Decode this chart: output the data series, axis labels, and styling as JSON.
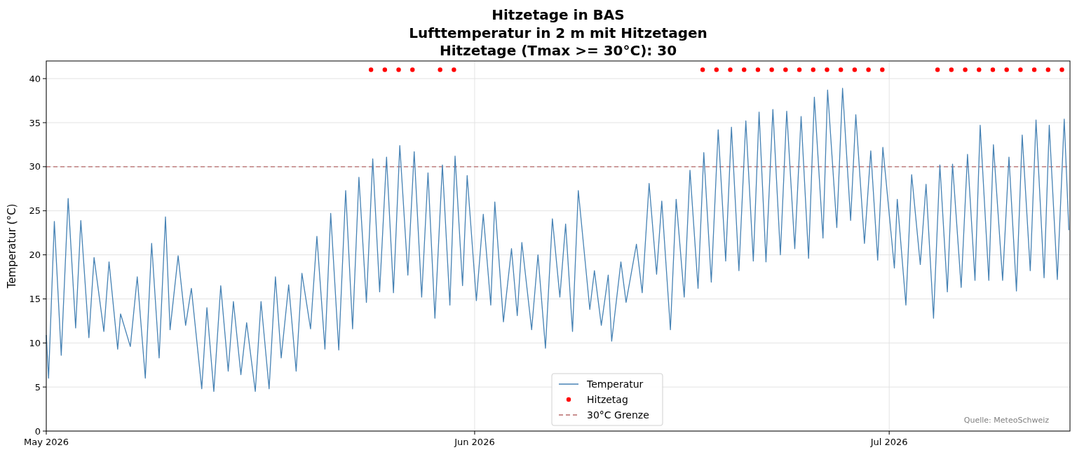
{
  "chart_data": {
    "type": "line",
    "title": "Hitzetage in BAS\nLufttemperatur in 2 m mit Hitzetagen\nHitzetage (Tmax >= 30°C): 30",
    "ylabel": "Temperatur (°C)",
    "xlim": [
      "2026-05-01T00:00",
      "2026-07-14T02:00"
    ],
    "xticks": [
      {
        "value": "2026-05-01",
        "label": "May 2026"
      },
      {
        "value": "2026-06-01",
        "label": "Jun 2026"
      },
      {
        "value": "2026-07-01",
        "label": "Jul 2026"
      }
    ],
    "ylim": [
      0,
      42
    ],
    "yticks": [
      0,
      5,
      10,
      15,
      20,
      25,
      30,
      35,
      40
    ],
    "grid": true,
    "legend": "bottom",
    "annotations": [
      "Quelle: MeteoSchweiz"
    ],
    "ref_lines": [
      {
        "axis": "y",
        "value": 30,
        "label": "30°C Grenze",
        "color": "#b86b6b",
        "line_style": "dashed"
      }
    ],
    "series": [
      {
        "name": "Temperatur",
        "color": "#4682b4",
        "marker": "none",
        "x": [
          "2026-05-01T00:00",
          "2026-05-01T04:00",
          "2026-05-01T14:00",
          "2026-05-02T02:00",
          "2026-05-02T14:00",
          "2026-05-03T03:00",
          "2026-05-03T12:00",
          "2026-05-04T02:00",
          "2026-05-04T11:00",
          "2026-05-05T04:00",
          "2026-05-05T13:00",
          "2026-05-06T04:00",
          "2026-05-06T09:00",
          "2026-05-07T02:00",
          "2026-05-07T14:00",
          "2026-05-08T04:00",
          "2026-05-08T15:00",
          "2026-05-09T04:00",
          "2026-05-09T15:00",
          "2026-05-09T23:00",
          "2026-05-10T13:00",
          "2026-05-11T02:00",
          "2026-05-11T12:00",
          "2026-05-12T06:00",
          "2026-05-12T15:00",
          "2026-05-13T03:00",
          "2026-05-13T15:00",
          "2026-05-14T04:00",
          "2026-05-14T13:00",
          "2026-05-15T02:00",
          "2026-05-15T12:00",
          "2026-05-16T03:00",
          "2026-05-16T13:00",
          "2026-05-17T03:00",
          "2026-05-17T14:00",
          "2026-05-18T00:00",
          "2026-05-18T13:00",
          "2026-05-19T02:00",
          "2026-05-19T12:00",
          "2026-05-20T03:00",
          "2026-05-20T14:00",
          "2026-05-21T04:00",
          "2026-05-21T14:00",
          "2026-05-22T04:00",
          "2026-05-22T16:00",
          "2026-05-23T04:00",
          "2026-05-23T15:00",
          "2026-05-24T04:00",
          "2026-05-24T15:00",
          "2026-05-25T03:00",
          "2026-05-25T15:00",
          "2026-05-26T03:00",
          "2026-05-26T14:00",
          "2026-05-27T04:00",
          "2026-05-27T15:00",
          "2026-05-28T04:00",
          "2026-05-28T15:00",
          "2026-05-29T03:00",
          "2026-05-29T16:00",
          "2026-05-30T05:00",
          "2026-05-30T14:00",
          "2026-05-31T03:00",
          "2026-05-31T11:00",
          "2026-06-01T03:00",
          "2026-06-01T15:00",
          "2026-06-02T04:00",
          "2026-06-02T11:00",
          "2026-06-03T02:00",
          "2026-06-03T16:00",
          "2026-06-04T02:00",
          "2026-06-04T10:00",
          "2026-06-05T03:00",
          "2026-06-05T14:00",
          "2026-06-06T03:00",
          "2026-06-06T15:00",
          "2026-06-07T04:00",
          "2026-06-07T14:00",
          "2026-06-08T02:00",
          "2026-06-08T12:00",
          "2026-06-09T08:00",
          "2026-06-09T16:00",
          "2026-06-10T04:00",
          "2026-06-10T16:00",
          "2026-06-10T22:00",
          "2026-06-11T14:00",
          "2026-06-11T23:00",
          "2026-06-12T17:00",
          "2026-06-13T03:00",
          "2026-06-13T15:00",
          "2026-06-14T04:00",
          "2026-06-14T13:00",
          "2026-06-15T04:00",
          "2026-06-15T14:00",
          "2026-06-16T04:00",
          "2026-06-16T14:00",
          "2026-06-17T04:00",
          "2026-06-17T14:00",
          "2026-06-18T03:00",
          "2026-06-18T15:00",
          "2026-06-19T04:00",
          "2026-06-19T14:00",
          "2026-06-20T03:00",
          "2026-06-20T15:00",
          "2026-06-21T04:00",
          "2026-06-21T14:00",
          "2026-06-22T02:00",
          "2026-06-22T14:00",
          "2026-06-23T03:00",
          "2026-06-23T14:00",
          "2026-06-24T04:00",
          "2026-06-24T15:00",
          "2026-06-25T04:00",
          "2026-06-25T14:00",
          "2026-06-26T05:00",
          "2026-06-26T13:00",
          "2026-06-27T05:00",
          "2026-06-27T15:00",
          "2026-06-28T05:00",
          "2026-06-28T14:00",
          "2026-06-29T05:00",
          "2026-06-29T16:00",
          "2026-06-30T04:00",
          "2026-06-30T13:00",
          "2026-07-01T09:00",
          "2026-07-01T14:00",
          "2026-07-02T05:00",
          "2026-07-02T15:00",
          "2026-07-03T06:00",
          "2026-07-03T16:00",
          "2026-07-04T05:00",
          "2026-07-04T16:00",
          "2026-07-05T05:00",
          "2026-07-05T14:00",
          "2026-07-06T05:00",
          "2026-07-06T16:00",
          "2026-07-07T05:00",
          "2026-07-07T14:00",
          "2026-07-08T05:00",
          "2026-07-08T13:00",
          "2026-07-09T05:00",
          "2026-07-09T16:00",
          "2026-07-10T05:00",
          "2026-07-10T15:00",
          "2026-07-11T05:00",
          "2026-07-11T15:00",
          "2026-07-12T05:00",
          "2026-07-12T14:00",
          "2026-07-13T04:00",
          "2026-07-13T16:00",
          "2026-07-14T00:00"
        ],
        "values": [
          10.9,
          6.0,
          23.8,
          8.6,
          26.4,
          11.7,
          23.9,
          10.6,
          19.7,
          11.3,
          19.2,
          9.3,
          13.3,
          9.6,
          17.5,
          6.0,
          21.3,
          8.3,
          24.3,
          11.5,
          19.9,
          12.0,
          16.2,
          4.8,
          14.0,
          4.5,
          16.5,
          6.8,
          14.7,
          6.4,
          12.3,
          4.5,
          14.7,
          4.8,
          17.5,
          8.3,
          16.6,
          6.8,
          17.9,
          11.6,
          22.1,
          9.3,
          24.7,
          9.2,
          27.3,
          11.6,
          28.8,
          14.6,
          30.9,
          15.8,
          31.1,
          15.7,
          32.4,
          17.7,
          31.7,
          15.2,
          29.3,
          12.8,
          30.2,
          14.3,
          31.2,
          16.5,
          29.0,
          14.8,
          24.6,
          14.3,
          26.0,
          12.4,
          20.7,
          13.1,
          21.4,
          11.5,
          20.0,
          9.4,
          24.1,
          15.2,
          23.5,
          11.3,
          27.3,
          13.8,
          18.2,
          12.0,
          17.7,
          10.2,
          19.2,
          14.6,
          21.2,
          15.7,
          28.1,
          17.8,
          26.1,
          11.5,
          26.3,
          15.2,
          29.6,
          16.2,
          31.6,
          16.9,
          34.2,
          19.3,
          34.5,
          18.2,
          35.2,
          19.3,
          36.2,
          19.2,
          36.5,
          20.0,
          36.3,
          20.7,
          35.7,
          19.6,
          37.9,
          21.9,
          38.7,
          23.1,
          38.9,
          23.9,
          35.9,
          21.3,
          31.8,
          19.4,
          32.2,
          18.5,
          26.3,
          14.3,
          29.1,
          18.9,
          28.0,
          12.8,
          30.2,
          15.8,
          30.3,
          16.3,
          31.4,
          17.1,
          34.7,
          17.1,
          32.5,
          17.1,
          31.1,
          15.9,
          33.6,
          18.2,
          35.3,
          17.4,
          34.7,
          17.2,
          35.4,
          22.8
        ]
      },
      {
        "name": "Hitzetag",
        "type": "scatter",
        "color": "#ff0000",
        "marker": "circle",
        "x": [
          "2026-05-24T12:00",
          "2026-05-25T12:00",
          "2026-05-26T12:00",
          "2026-05-27T12:00",
          "2026-05-29T12:00",
          "2026-05-30T12:00",
          "2026-06-17T12:00",
          "2026-06-18T12:00",
          "2026-06-19T12:00",
          "2026-06-20T12:00",
          "2026-06-21T12:00",
          "2026-06-22T12:00",
          "2026-06-23T12:00",
          "2026-06-24T12:00",
          "2026-06-25T12:00",
          "2026-06-26T12:00",
          "2026-06-27T12:00",
          "2026-06-28T12:00",
          "2026-06-29T12:00",
          "2026-06-30T12:00",
          "2026-07-04T12:00",
          "2026-07-05T12:00",
          "2026-07-06T12:00",
          "2026-07-07T12:00",
          "2026-07-08T12:00",
          "2026-07-09T12:00",
          "2026-07-10T12:00",
          "2026-07-11T12:00",
          "2026-07-12T12:00",
          "2026-07-13T12:00"
        ],
        "values": [
          41,
          41,
          41,
          41,
          41,
          41,
          41,
          41,
          41,
          41,
          41,
          41,
          41,
          41,
          41,
          41,
          41,
          41,
          41,
          41,
          41,
          41,
          41,
          41,
          41,
          41,
          41,
          41,
          41,
          41
        ]
      }
    ]
  }
}
